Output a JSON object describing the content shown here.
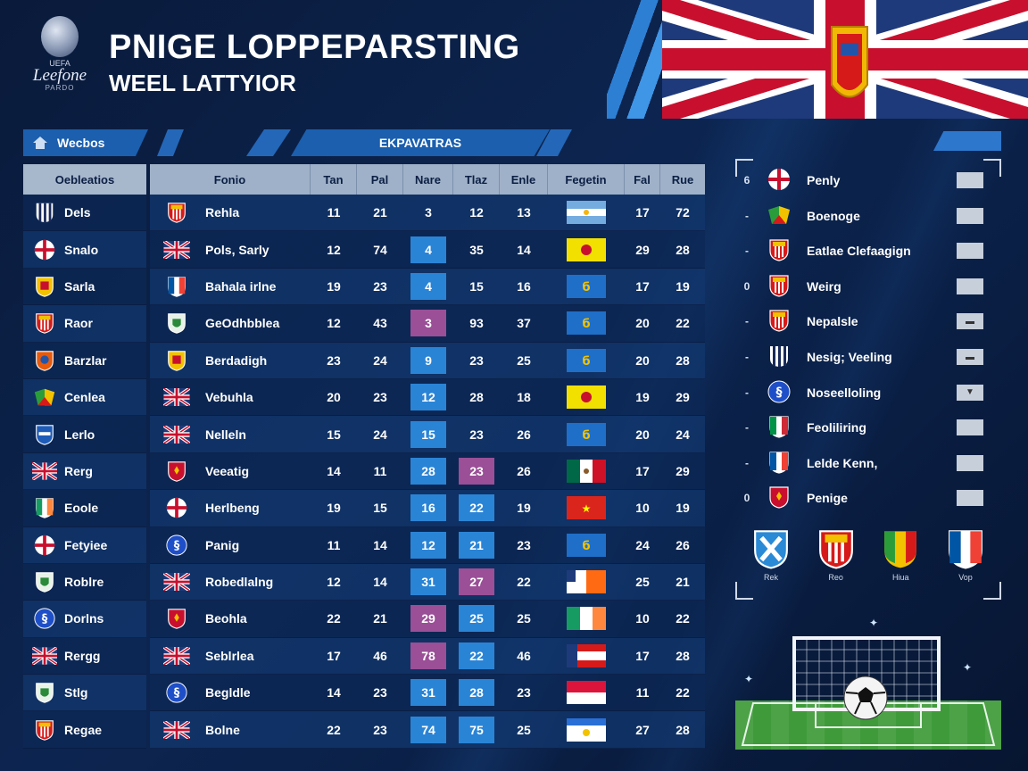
{
  "header": {
    "logo_lines": [
      "UEFA",
      "Leefone",
      "PARDO"
    ],
    "title": "PNIGE LOPPEPARSTING",
    "subtitle": "WEEL LATTYIOR"
  },
  "tabbar": {
    "home_label": "Wecbos",
    "center_label": "EKPAVATRAS"
  },
  "left_table": {
    "header": "Oebleatios",
    "rows": [
      {
        "name": "Dels",
        "badge": "stripes-navy"
      },
      {
        "name": "Snalo",
        "badge": "cross-red"
      },
      {
        "name": "Sarla",
        "badge": "shield-gold"
      },
      {
        "name": "Raor",
        "badge": "shield-atletico"
      },
      {
        "name": "Barzlar",
        "badge": "shield-orange"
      },
      {
        "name": "Cenlea",
        "badge": "shield-multi"
      },
      {
        "name": "Lerlo",
        "badge": "shield-blue"
      },
      {
        "name": "Rerg",
        "badge": "union-jack"
      },
      {
        "name": "Eoole",
        "badge": "tricolor-ireland"
      },
      {
        "name": "Fetyiee",
        "badge": "cross-red"
      },
      {
        "name": "Roblre",
        "badge": "shield-green"
      },
      {
        "name": "Dorlns",
        "badge": "shield-royal"
      },
      {
        "name": "Rergg",
        "badge": "union-jack"
      },
      {
        "name": "Stlg",
        "badge": "shield-green"
      },
      {
        "name": "Regae",
        "badge": "shield-atletico"
      }
    ]
  },
  "main_table": {
    "headers": [
      "Fonio",
      "Tan",
      "Pal",
      "Nare",
      "Tlaz",
      "Enle",
      "Fegetin",
      "Fal",
      "Rue"
    ],
    "rows": [
      {
        "team": "Rehla",
        "badge": "shield-atletico",
        "v1": "11",
        "v2": "21",
        "v3": "3",
        "v3_style": "none",
        "v4": "12",
        "v4_style": "none",
        "v5": "13",
        "flag": "argentina",
        "v6": "17",
        "v7": "72"
      },
      {
        "team": "Pols, Sarly",
        "badge": "union-jack",
        "v1": "12",
        "v2": "74",
        "v3": "4",
        "v3_style": "blue",
        "v4": "35",
        "v4_style": "none",
        "v5": "14",
        "flag": "yellow-crest",
        "v6": "29",
        "v7": "28"
      },
      {
        "team": "Bahala irlne",
        "badge": "france",
        "v1": "19",
        "v2": "23",
        "v3": "4",
        "v3_style": "blue",
        "v4": "15",
        "v4_style": "none",
        "v5": "16",
        "flag": "blue-crest",
        "flag_text": "б",
        "v6": "17",
        "v7": "19"
      },
      {
        "team": "GeOdhbblea",
        "badge": "shield-green",
        "v1": "12",
        "v2": "43",
        "v3": "3",
        "v3_style": "purple",
        "v4": "93",
        "v4_style": "none",
        "v5": "37",
        "flag": "blue-crest",
        "flag_text": "б",
        "v6": "20",
        "v7": "22"
      },
      {
        "team": "Berdadigh",
        "badge": "shield-gold",
        "v1": "23",
        "v2": "24",
        "v3": "9",
        "v3_style": "blue",
        "v4": "23",
        "v4_style": "none",
        "v5": "25",
        "flag": "blue-crest",
        "flag_text": "б",
        "v6": "20",
        "v7": "28"
      },
      {
        "team": "Vebuhla",
        "badge": "union-jack",
        "v1": "20",
        "v2": "23",
        "v3": "12",
        "v3_style": "blue",
        "v4": "28",
        "v4_style": "none",
        "v5": "18",
        "flag": "yellow-crest",
        "v6": "19",
        "v7": "29"
      },
      {
        "team": "Nelleln",
        "badge": "union-jack",
        "v1": "15",
        "v2": "24",
        "v3": "15",
        "v3_style": "blue",
        "v4": "23",
        "v4_style": "none",
        "v5": "26",
        "flag": "blue-crest",
        "flag_text": "б",
        "v6": "20",
        "v7": "24"
      },
      {
        "team": "Veeatig",
        "badge": "shield-red",
        "v1": "14",
        "v2": "11",
        "v3": "28",
        "v3_style": "blue",
        "v4": "23",
        "v4_style": "purple",
        "v5": "26",
        "flag": "mexico",
        "v6": "17",
        "v7": "29"
      },
      {
        "team": "Herlbeng",
        "badge": "cross-red",
        "v1": "19",
        "v2": "15",
        "v3": "16",
        "v3_style": "blue",
        "v4": "22",
        "v4_style": "blue",
        "v5": "19",
        "flag": "red-star",
        "v6": "10",
        "v7": "19"
      },
      {
        "team": "Panig",
        "badge": "shield-royal",
        "v1": "11",
        "v2": "14",
        "v3": "12",
        "v3_style": "blue",
        "v4": "21",
        "v4_style": "blue",
        "v5": "23",
        "flag": "blue-crest",
        "flag_text": "б",
        "v6": "24",
        "v7": "26"
      },
      {
        "team": "Robedlalng",
        "badge": "union-jack",
        "v1": "12",
        "v2": "14",
        "v3": "31",
        "v3_style": "blue",
        "v4": "27",
        "v4_style": "purple",
        "v5": "22",
        "flag": "orange-white",
        "v6": "25",
        "v7": "21"
      },
      {
        "team": "Beohla",
        "badge": "shield-red",
        "v1": "22",
        "v2": "21",
        "v3": "29",
        "v3_style": "purple",
        "v4": "25",
        "v4_style": "blue",
        "v5": "25",
        "flag": "ireland",
        "v6": "10",
        "v7": "22"
      },
      {
        "team": "Seblrlea",
        "badge": "union-jack",
        "v1": "17",
        "v2": "46",
        "v3": "78",
        "v3_style": "purple",
        "v4": "22",
        "v4_style": "blue",
        "v5": "46",
        "flag": "red-white-blue",
        "v6": "17",
        "v7": "28"
      },
      {
        "team": "Begldle",
        "badge": "shield-royal",
        "v1": "14",
        "v2": "23",
        "v3": "31",
        "v3_style": "blue",
        "v4": "28",
        "v4_style": "blue",
        "v5": "23",
        "flag": "red-white",
        "v6": "11",
        "v7": "22"
      },
      {
        "team": "Bolne",
        "badge": "union-jack",
        "v1": "22",
        "v2": "23",
        "v3": "74",
        "v3_style": "blue",
        "v4": "75",
        "v4_style": "blue",
        "v5": "25",
        "flag": "blue-white",
        "v6": "27",
        "v7": "28"
      }
    ]
  },
  "right_panel": {
    "rows": [
      {
        "marker": "6",
        "name": "Penly",
        "badge": "cross-red",
        "box": ""
      },
      {
        "marker": "-",
        "name": "Boenoge",
        "badge": "shield-multi",
        "box": ""
      },
      {
        "marker": "-",
        "name": "Eatlae Clefaagign",
        "badge": "shield-atletico",
        "box": ""
      },
      {
        "marker": "0",
        "name": "Weirg",
        "badge": "shield-atletico",
        "box": ""
      },
      {
        "marker": "-",
        "name": "Nepalsle",
        "badge": "shield-atletico",
        "box": "▬"
      },
      {
        "marker": "-",
        "name": "Nesig; Veeling",
        "badge": "stripes-navy",
        "box": "▬"
      },
      {
        "marker": "-",
        "name": "Noseelloling",
        "badge": "shield-royal",
        "box": "▼"
      },
      {
        "marker": "-",
        "name": "Feoliliring",
        "badge": "tricolor-italy",
        "box": ""
      },
      {
        "marker": "-",
        "name": "Lelde Kenn,",
        "badge": "france",
        "box": ""
      },
      {
        "marker": "0",
        "name": "Penige",
        "badge": "shield-red",
        "box": ""
      }
    ],
    "big_badges": [
      {
        "label": "Rek",
        "badge": "shield-cyan"
      },
      {
        "label": "Reo",
        "badge": "shield-atletico"
      },
      {
        "label": "Hiua",
        "badge": "shield-tricolor"
      },
      {
        "label": "Vop",
        "badge": "france"
      }
    ]
  },
  "colors": {
    "accent_blue": "#2a84d6",
    "accent_purple": "#9a4f97",
    "header_gray": "#9fb1c8",
    "bg_navy": "#0c2550"
  }
}
